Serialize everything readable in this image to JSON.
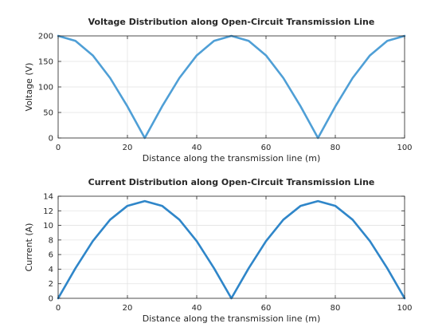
{
  "chart_data": [
    {
      "type": "line",
      "title": "Voltage Distribution along Open-Circuit Transmission Line",
      "xlabel": "Distance along the transmission line (m)",
      "ylabel": "Voltage (V)",
      "xlim": [
        0,
        100
      ],
      "ylim": [
        0,
        200
      ],
      "xticks": [
        0,
        20,
        40,
        60,
        80,
        100
      ],
      "yticks": [
        0,
        50,
        100,
        150,
        200
      ],
      "grid": true,
      "line_color": "#4f9fd6",
      "series": [
        {
          "x": [
            0,
            5,
            10,
            15,
            20,
            25,
            30,
            35,
            40,
            45,
            50,
            55,
            60,
            65,
            70,
            75,
            80,
            85,
            90,
            95,
            100
          ],
          "y": [
            200,
            190.2,
            161.8,
            117.6,
            61.8,
            0,
            61.8,
            117.6,
            161.8,
            190.2,
            200,
            190.2,
            161.8,
            117.6,
            61.8,
            0,
            61.8,
            117.6,
            161.8,
            190.2,
            200
          ]
        }
      ]
    },
    {
      "type": "line",
      "title": "Current Distribution along Open-Circuit Transmission Line",
      "xlabel": "Distance along the transmission line (m)",
      "ylabel": "Current (A)",
      "xlim": [
        0,
        100
      ],
      "ylim": [
        0,
        14
      ],
      "xticks": [
        0,
        20,
        40,
        60,
        80,
        100
      ],
      "yticks": [
        0,
        2,
        4,
        6,
        8,
        10,
        12,
        14
      ],
      "grid": true,
      "line_color": "#2f86c9",
      "series": [
        {
          "x": [
            0,
            5,
            10,
            15,
            20,
            25,
            30,
            35,
            40,
            45,
            50,
            55,
            60,
            65,
            70,
            75,
            80,
            85,
            90,
            95,
            100
          ],
          "y": [
            0,
            4.12,
            7.84,
            10.78,
            12.68,
            13.33,
            12.68,
            10.78,
            7.84,
            4.12,
            0,
            4.12,
            7.84,
            10.78,
            12.68,
            13.33,
            12.68,
            10.78,
            7.84,
            4.12,
            0
          ]
        }
      ]
    }
  ]
}
